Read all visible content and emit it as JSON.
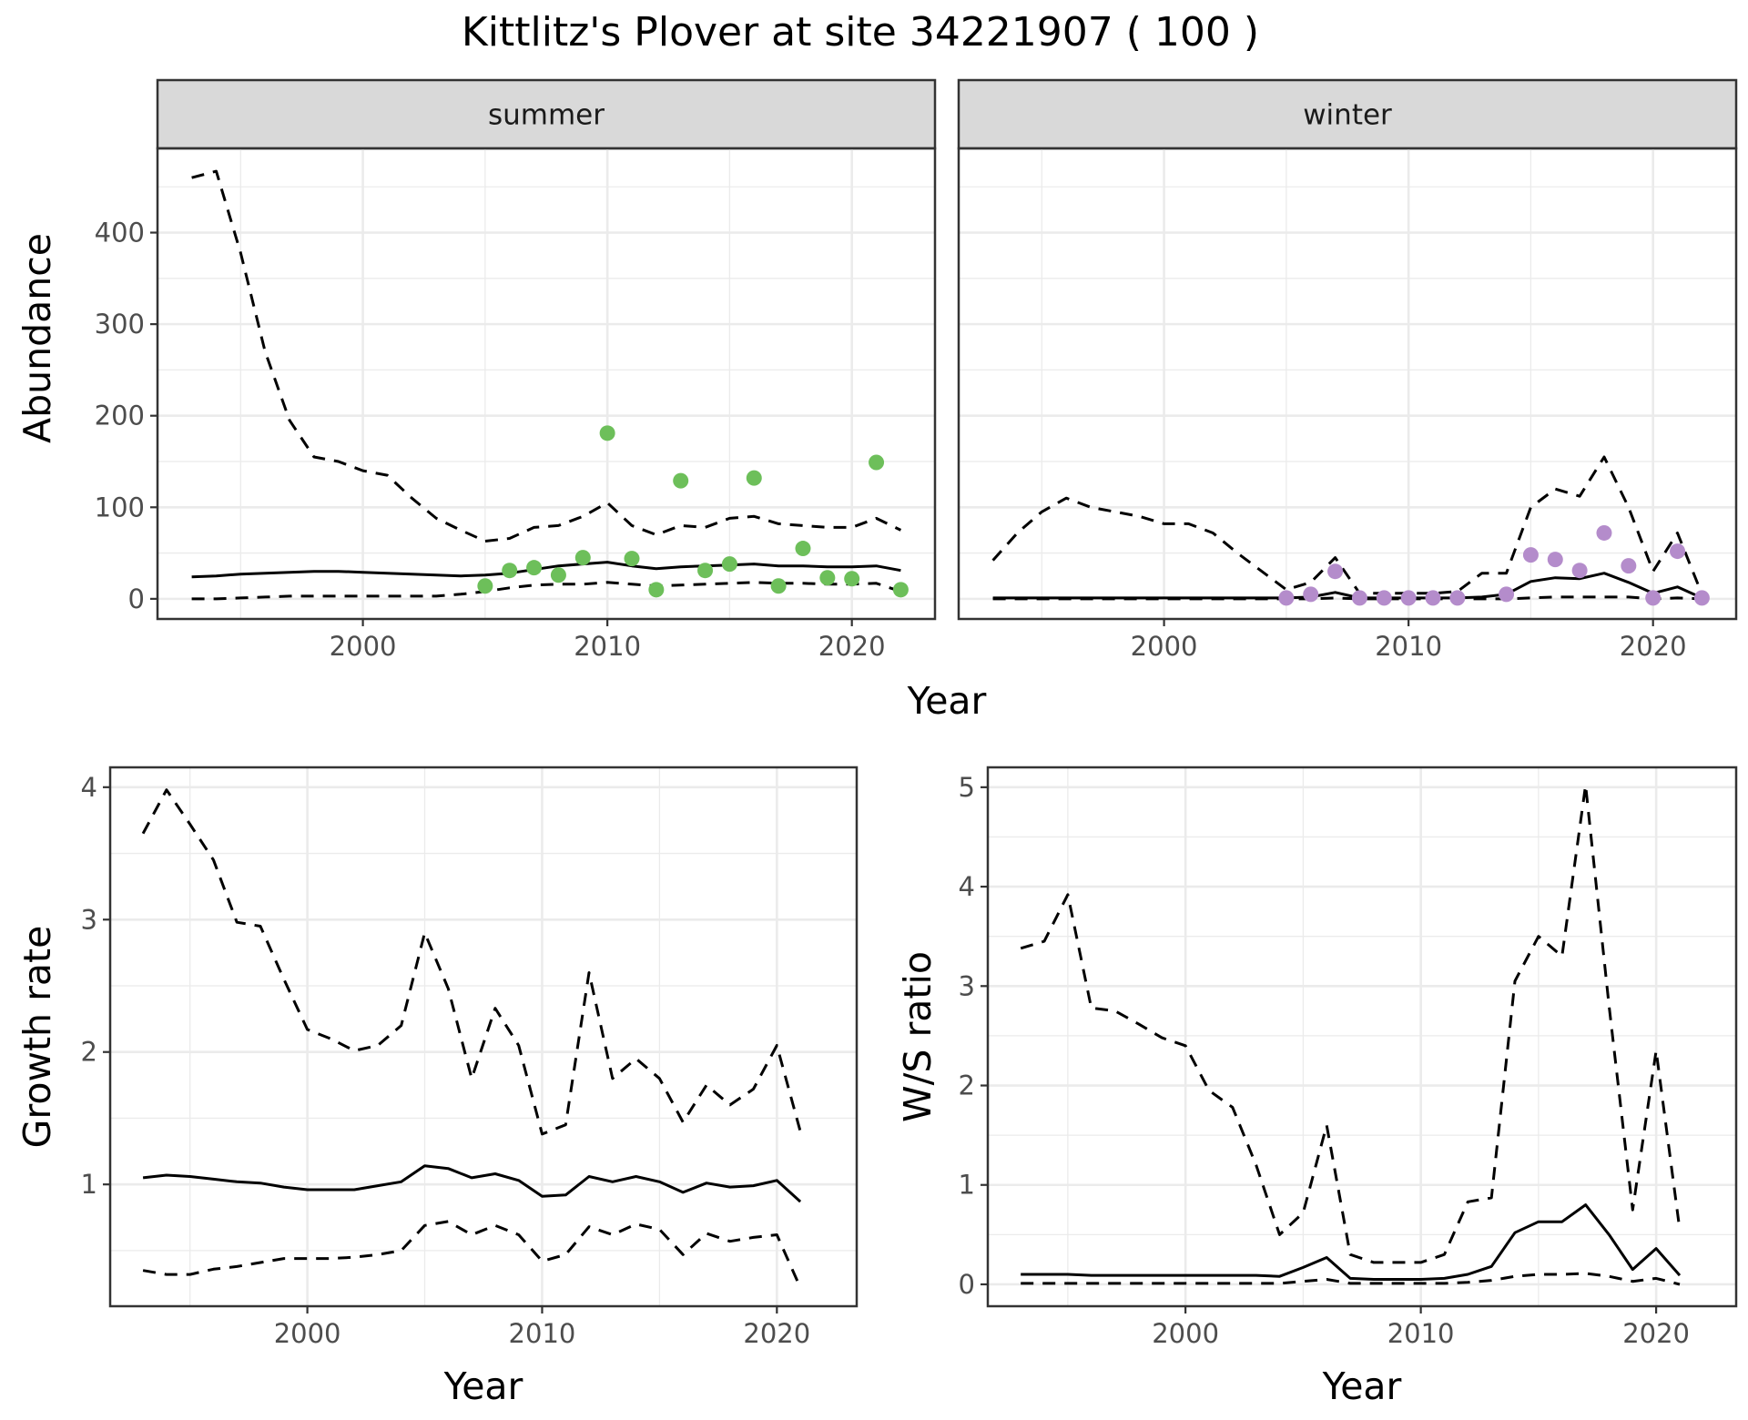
{
  "title": "Kittlitz's Plover at site 34221907 ( 100 )",
  "colors": {
    "summer_points": "#6dbf5a",
    "winter_points": "#b48ccb",
    "lines": "#000000"
  },
  "chart_data": [
    {
      "id": "abundance",
      "type": "line",
      "facets": [
        "summer",
        "winter"
      ],
      "xlabel": "Year",
      "ylabel": "Abundance",
      "xlim": [
        1991.6,
        2023.4
      ],
      "ylim": [
        -22,
        492
      ],
      "xticks": [
        2000,
        2010,
        2020
      ],
      "yticks": [
        0,
        100,
        200,
        300,
        400
      ],
      "grid": true,
      "panels": [
        {
          "label": "summer",
          "series": [
            {
              "style": "solid",
              "x": [
                1993,
                1994,
                1995,
                1996,
                1997,
                1998,
                1999,
                2000,
                2001,
                2002,
                2003,
                2004,
                2005,
                2006,
                2007,
                2008,
                2009,
                2010,
                2011,
                2012,
                2013,
                2014,
                2015,
                2016,
                2017,
                2018,
                2019,
                2020,
                2021,
                2022
              ],
              "y": [
                24,
                25,
                27,
                28,
                29,
                30,
                30,
                29,
                28,
                27,
                26,
                25,
                26,
                28,
                32,
                36,
                38,
                40,
                36,
                33,
                35,
                36,
                37,
                38,
                36,
                36,
                35,
                35,
                36,
                31
              ]
            },
            {
              "style": "dashed",
              "x": [
                1993,
                1994,
                1995,
                1996,
                1997,
                1998,
                1999,
                2000,
                2001,
                2002,
                2003,
                2004,
                2005,
                2006,
                2007,
                2008,
                2009,
                2010,
                2011,
                2012,
                2013,
                2014,
                2015,
                2016,
                2017,
                2018,
                2019,
                2020,
                2021,
                2022
              ],
              "y": [
                460,
                467,
                378,
                270,
                195,
                155,
                150,
                140,
                135,
                110,
                88,
                75,
                63,
                66,
                78,
                80,
                90,
                105,
                80,
                70,
                80,
                78,
                88,
                90,
                82,
                80,
                78,
                78,
                88,
                75
              ]
            },
            {
              "style": "dashed",
              "x": [
                1993,
                1994,
                1995,
                1996,
                1997,
                1998,
                1999,
                2000,
                2001,
                2002,
                2003,
                2004,
                2005,
                2006,
                2007,
                2008,
                2009,
                2010,
                2011,
                2012,
                2013,
                2014,
                2015,
                2016,
                2017,
                2018,
                2019,
                2020,
                2021,
                2022
              ],
              "y": [
                0,
                0,
                1,
                2,
                3,
                3,
                3,
                3,
                3,
                3,
                3,
                5,
                8,
                12,
                15,
                16,
                16,
                18,
                16,
                14,
                15,
                16,
                17,
                18,
                17,
                17,
                16,
                16,
                17,
                8
              ]
            }
          ],
          "points": {
            "x": [
              2005,
              2006,
              2007,
              2008,
              2009,
              2010,
              2011,
              2012,
              2013,
              2014,
              2015,
              2016,
              2017,
              2018,
              2019,
              2020,
              2021,
              2022
            ],
            "y": [
              14,
              31,
              34,
              26,
              45,
              181,
              44,
              10,
              129,
              31,
              38,
              132,
              14,
              55,
              23,
              22,
              149,
              10
            ]
          }
        },
        {
          "label": "winter",
          "series": [
            {
              "style": "solid",
              "x": [
                1993,
                1994,
                1995,
                1996,
                1997,
                1998,
                1999,
                2000,
                2001,
                2002,
                2003,
                2004,
                2005,
                2006,
                2007,
                2008,
                2009,
                2010,
                2011,
                2012,
                2013,
                2014,
                2015,
                2016,
                2017,
                2018,
                2019,
                2020,
                2021,
                2022
              ],
              "y": [
                1,
                1,
                1,
                1,
                1,
                1,
                1,
                1,
                1,
                1,
                1,
                1,
                1,
                2,
                7,
                1,
                1,
                1,
                1,
                1,
                2,
                5,
                19,
                23,
                22,
                28,
                18,
                6,
                13,
                1
              ]
            },
            {
              "style": "dashed",
              "x": [
                1993,
                1994,
                1995,
                1996,
                1997,
                1998,
                1999,
                2000,
                2001,
                2002,
                2003,
                2004,
                2005,
                2006,
                2007,
                2008,
                2009,
                2010,
                2011,
                2012,
                2013,
                2014,
                2015,
                2016,
                2017,
                2018,
                2019,
                2020,
                2021,
                2022
              ],
              "y": [
                42,
                72,
                95,
                110,
                100,
                95,
                90,
                82,
                82,
                72,
                50,
                30,
                10,
                18,
                45,
                6,
                6,
                6,
                6,
                8,
                28,
                28,
                100,
                120,
                112,
                155,
                100,
                30,
                72,
                5
              ]
            },
            {
              "style": "dashed",
              "x": [
                1993,
                1994,
                1995,
                1996,
                1997,
                1998,
                1999,
                2000,
                2001,
                2002,
                2003,
                2004,
                2005,
                2006,
                2007,
                2008,
                2009,
                2010,
                2011,
                2012,
                2013,
                2014,
                2015,
                2016,
                2017,
                2018,
                2019,
                2020,
                2021,
                2022
              ],
              "y": [
                0,
                0,
                0,
                0,
                0,
                0,
                0,
                0,
                0,
                0,
                0,
                0,
                0,
                0,
                1,
                0,
                0,
                0,
                0,
                0,
                0,
                0,
                1,
                2,
                2,
                2,
                2,
                0,
                1,
                0
              ]
            }
          ],
          "points": {
            "x": [
              2005,
              2006,
              2007,
              2008,
              2009,
              2010,
              2011,
              2012,
              2014,
              2015,
              2016,
              2017,
              2018,
              2019,
              2020,
              2021,
              2022
            ],
            "y": [
              1,
              5,
              30,
              1,
              1,
              1,
              1,
              1,
              5,
              48,
              43,
              31,
              72,
              36,
              1,
              52,
              1
            ]
          }
        }
      ]
    },
    {
      "id": "growth",
      "type": "line",
      "xlabel": "Year",
      "ylabel": "Growth rate",
      "xlim": [
        1991.6,
        2023.4
      ],
      "ylim": [
        0.08,
        4.15
      ],
      "xticks": [
        2000,
        2010,
        2020
      ],
      "yticks": [
        1,
        2,
        3,
        4
      ],
      "grid": true,
      "series": [
        {
          "style": "solid",
          "x": [
            1993,
            1994,
            1995,
            1996,
            1997,
            1998,
            1999,
            2000,
            2001,
            2002,
            2003,
            2004,
            2005,
            2006,
            2007,
            2008,
            2009,
            2010,
            2011,
            2012,
            2013,
            2014,
            2015,
            2016,
            2017,
            2018,
            2019,
            2020,
            2021
          ],
          "y": [
            1.05,
            1.07,
            1.06,
            1.04,
            1.02,
            1.01,
            0.98,
            0.96,
            0.96,
            0.96,
            0.99,
            1.02,
            1.14,
            1.12,
            1.05,
            1.08,
            1.03,
            0.91,
            0.92,
            1.06,
            1.02,
            1.06,
            1.02,
            0.94,
            1.01,
            0.98,
            0.99,
            1.03,
            0.87
          ]
        },
        {
          "style": "dashed",
          "x": [
            1993,
            1994,
            1995,
            1996,
            1997,
            1998,
            1999,
            2000,
            2001,
            2002,
            2003,
            2004,
            2005,
            2006,
            2007,
            2008,
            2009,
            2010,
            2011,
            2012,
            2013,
            2014,
            2015,
            2016,
            2017,
            2018,
            2019,
            2020,
            2021
          ],
          "y": [
            3.65,
            3.98,
            3.72,
            3.45,
            2.98,
            2.95,
            2.55,
            2.17,
            2.1,
            2.01,
            2.05,
            2.2,
            2.9,
            2.48,
            1.8,
            2.33,
            2.05,
            1.38,
            1.45,
            2.6,
            1.8,
            1.95,
            1.8,
            1.47,
            1.75,
            1.6,
            1.72,
            2.05,
            1.4
          ]
        },
        {
          "style": "dashed",
          "x": [
            1993,
            1994,
            1995,
            1996,
            1997,
            1998,
            1999,
            2000,
            2001,
            2002,
            2003,
            2004,
            2005,
            2006,
            2007,
            2008,
            2009,
            2010,
            2011,
            2012,
            2013,
            2014,
            2015,
            2016,
            2017,
            2018,
            2019,
            2020,
            2021
          ],
          "y": [
            0.35,
            0.32,
            0.32,
            0.36,
            0.38,
            0.41,
            0.44,
            0.44,
            0.44,
            0.45,
            0.47,
            0.5,
            0.69,
            0.72,
            0.62,
            0.69,
            0.62,
            0.42,
            0.47,
            0.68,
            0.62,
            0.7,
            0.66,
            0.47,
            0.63,
            0.57,
            0.6,
            0.62,
            0.22
          ]
        }
      ]
    },
    {
      "id": "ws_ratio",
      "type": "line",
      "xlabel": "Year",
      "ylabel": "W/S ratio",
      "xlim": [
        1991.6,
        2023.4
      ],
      "ylim": [
        -0.22,
        5.2
      ],
      "xticks": [
        2000,
        2010,
        2020
      ],
      "yticks": [
        0,
        1,
        2,
        3,
        4,
        5
      ],
      "grid": true,
      "series": [
        {
          "style": "solid",
          "x": [
            1993,
            1994,
            1995,
            1996,
            1997,
            1998,
            1999,
            2000,
            2001,
            2002,
            2003,
            2004,
            2005,
            2006,
            2007,
            2008,
            2009,
            2010,
            2011,
            2012,
            2013,
            2014,
            2015,
            2016,
            2017,
            2018,
            2019,
            2020,
            2021
          ],
          "y": [
            0.1,
            0.1,
            0.1,
            0.09,
            0.09,
            0.09,
            0.09,
            0.09,
            0.09,
            0.09,
            0.09,
            0.08,
            0.17,
            0.27,
            0.06,
            0.05,
            0.05,
            0.05,
            0.06,
            0.1,
            0.18,
            0.52,
            0.63,
            0.63,
            0.8,
            0.5,
            0.15,
            0.36,
            0.09
          ]
        },
        {
          "style": "dashed",
          "x": [
            1993,
            1994,
            1995,
            1996,
            1997,
            1998,
            1999,
            2000,
            2001,
            2002,
            2003,
            2004,
            2005,
            2006,
            2007,
            2008,
            2009,
            2010,
            2011,
            2012,
            2013,
            2014,
            2015,
            2016,
            2017,
            2018,
            2019,
            2020,
            2021
          ],
          "y": [
            3.38,
            3.45,
            3.92,
            2.78,
            2.75,
            2.62,
            2.48,
            2.4,
            1.95,
            1.78,
            1.2,
            0.5,
            0.72,
            1.6,
            0.3,
            0.22,
            0.22,
            0.22,
            0.3,
            0.83,
            0.87,
            3.05,
            3.5,
            3.3,
            5.02,
            2.8,
            0.75,
            2.35,
            0.55
          ]
        },
        {
          "style": "dashed",
          "x": [
            1993,
            1994,
            1995,
            1996,
            1997,
            1998,
            1999,
            2000,
            2001,
            2002,
            2003,
            2004,
            2005,
            2006,
            2007,
            2008,
            2009,
            2010,
            2011,
            2012,
            2013,
            2014,
            2015,
            2016,
            2017,
            2018,
            2019,
            2020,
            2021
          ],
          "y": [
            0.01,
            0.01,
            0.01,
            0.01,
            0.01,
            0.01,
            0.01,
            0.01,
            0.01,
            0.01,
            0.01,
            0.01,
            0.03,
            0.05,
            0.01,
            0.01,
            0.01,
            0.01,
            0.01,
            0.02,
            0.04,
            0.08,
            0.1,
            0.1,
            0.11,
            0.08,
            0.03,
            0.06,
            0.0
          ]
        }
      ]
    }
  ]
}
